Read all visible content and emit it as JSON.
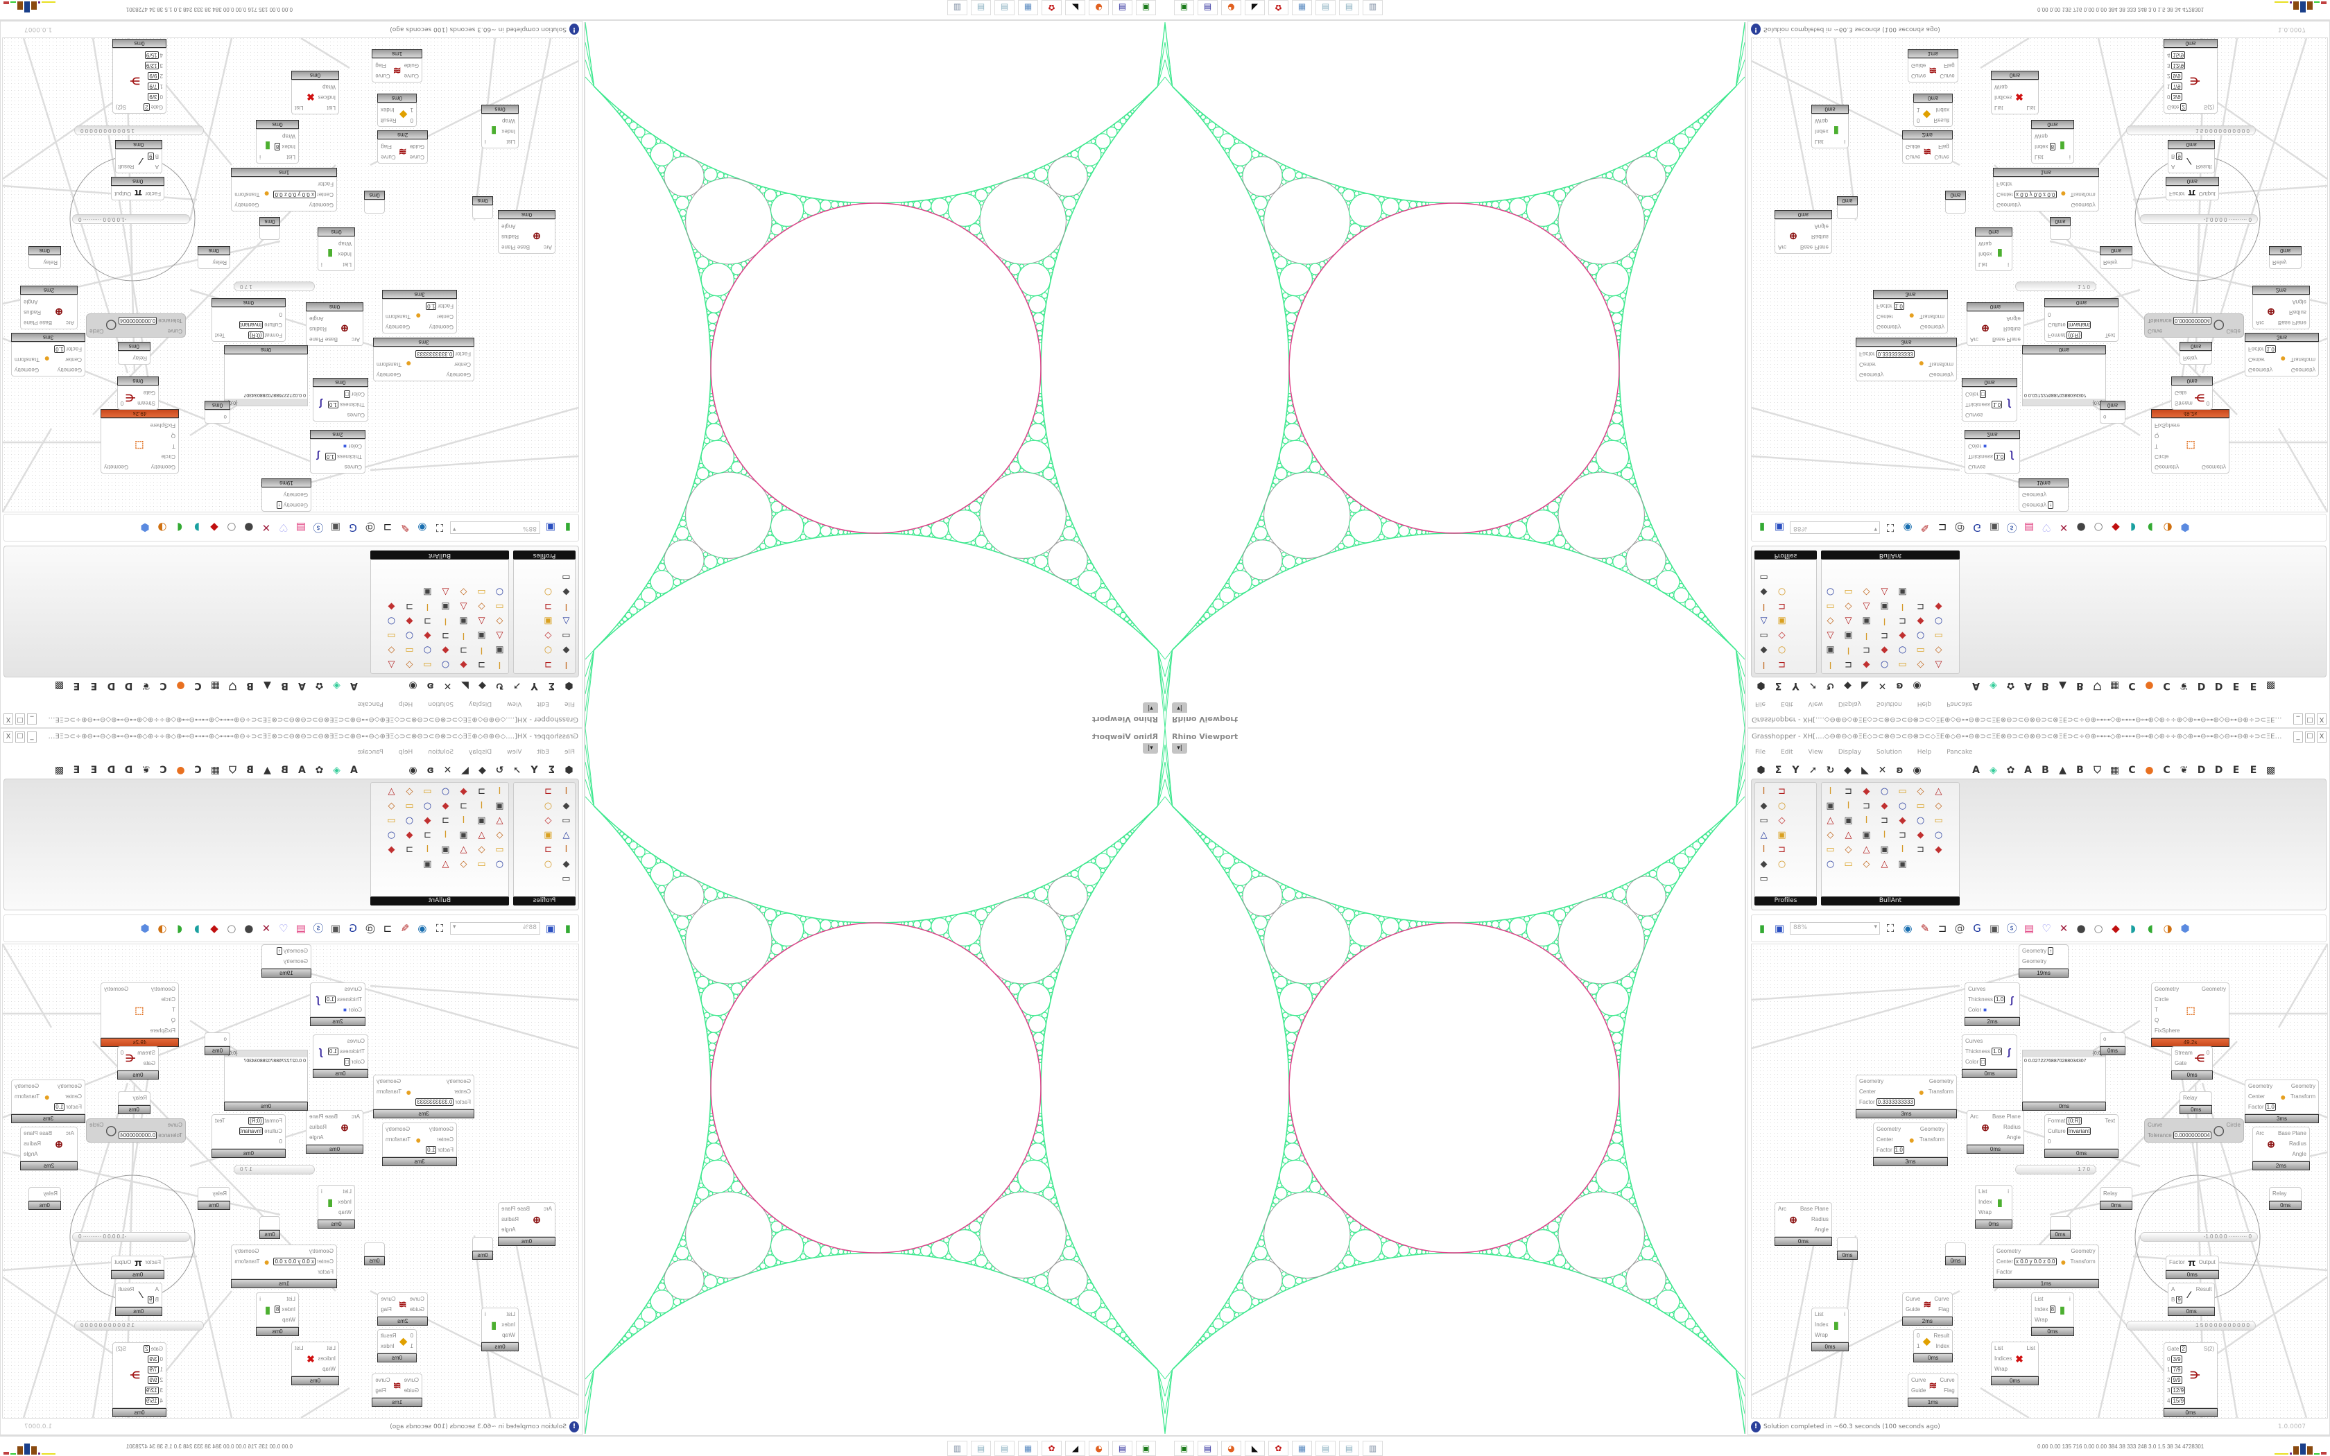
{
  "viewport": {
    "title": "Rhino Viewport",
    "dropdown_icon": "caret-down-icon"
  },
  "grasshopper": {
    "title": "Grasshopper - XH[....◇⊖⊕⊖◇⊕ΞE◇⊃⊂⊗⊖⊃⊂⊖⊗⊃⊂◇ΞE⊕◇⊖⊶⊖⊕⊃⊂ΞE⊗⊖⊃⊂⊖⊗⊖⊃⊂⊗ΞE⊃⊂÷⊖⊕⊶⊶◇⊕⊶⊶⊖⊶⊕◇⊕÷÷⊕◇⊕⊶⊖⊶⊕◇⊖⊶⊖⊕÷⊃⊂ΞE⊗⊖⊃⊂⊖⊗⊖...",
    "window_buttons": [
      "_",
      "☐",
      "X"
    ],
    "menu": [
      "File",
      "Edit",
      "View",
      "Display",
      "Solution",
      "Help",
      "Pancake"
    ],
    "category_tabs": [
      "⬢",
      "Σ",
      "Y",
      "➚",
      "↻",
      "◆",
      "◣",
      "✕",
      "ʚ",
      "◉",
      "",
      "A",
      "◈",
      "✿",
      "A",
      "B",
      "▲",
      "B",
      "⛉",
      "▦",
      "C",
      "●",
      "C",
      "❦",
      "D",
      "D",
      "E",
      "E",
      "▩"
    ],
    "ribbon": {
      "panels": [
        {
          "label": "Profiles",
          "icons": [
            "I-profile-icon",
            "C-profile-icon",
            "Z-profile-icon",
            "I-profile-icon",
            "circle-profile-icon",
            "I-profile-icon",
            "rect-profile-icon",
            "I-profile-icon",
            "rect-profile-icon",
            "L-profile-icon",
            "I-profile-icon",
            "circle-profile-icon",
            "points-icon"
          ]
        },
        {
          "label": "BullAnt",
          "icons": [
            "box-icon",
            "flower-icon",
            "graph-icon",
            "triangle-icon",
            "split-icon",
            "frame-icon",
            "surface-icon",
            "circle-icon",
            "feather-icon",
            "bars-icon",
            "quad-icon",
            "vtruss-icon",
            "lock-icon",
            "mesh-icon",
            "circle-icon",
            "cube-icon",
            "polyline-icon",
            "quad-icon",
            "vtruss-icon",
            "lock-icon",
            "surface-icon",
            "sphere-icon",
            "curve-icon",
            "dots-icon",
            "polyline-icon",
            "quad-icon",
            "lock-icon",
            "cube-icon",
            "cone-icon",
            "curve-icon",
            "split-icon",
            "polyline-icon",
            "quad-icon",
            "lock-icon",
            "hex-icon",
            "frame-icon",
            "quad-icon",
            "split-icon",
            "frame-icon",
            "rainbow-icon"
          ]
        }
      ]
    },
    "toolbar": {
      "zoom": "88%",
      "icons": [
        "open-file-icon",
        "save-icon",
        "zoom-extents-icon",
        "preview-eye-icon",
        "sketch-icon",
        "plugin-icon",
        "at-icon",
        "gha-icon",
        "window-icon",
        "search-icon",
        "package-icon",
        "bulb-icon",
        "dna-icon",
        "shaded-sphere-icon",
        "wire-sphere-icon",
        "red-gem-icon",
        "teal-icon",
        "green-icon",
        "half-sphere-icon",
        "blue-sphere-icon"
      ]
    },
    "canvas": {
      "components": [
        {
          "inputs": [
            {
              "label": "Curves"
            },
            {
              "label": "Thickness",
              "value": "1.0"
            },
            {
              "label": "Color",
              "value": "■"
            }
          ],
          "outputs": [],
          "icon": "brush-stroke-icon",
          "time": "2ms"
        },
        {
          "inputs": [
            {
              "label": "Curves"
            },
            {
              "label": "Thickness",
              "value": "1.0"
            },
            {
              "label": "Color",
              "value": "□"
            }
          ],
          "outputs": [],
          "icon": "brush-stroke-icon",
          "time": "0ms"
        },
        {
          "inputs": [
            {
              "label": "Geometry"
            },
            {
              "label": "Center"
            },
            {
              "label": "Factor",
              "value": "0.3333333333"
            }
          ],
          "outputs": [
            {
              "label": "Geometry"
            },
            {
              "label": "Transform"
            }
          ],
          "icon": "scale-icon",
          "time": "3ms"
        },
        {
          "inputs": [
            {
              "label": "Geometry"
            },
            {
              "label": "Center"
            },
            {
              "label": "Factor",
              "value": "1.0"
            }
          ],
          "outputs": [
            {
              "label": "Geometry"
            },
            {
              "label": "Transform"
            }
          ],
          "icon": "scale-icon",
          "time": "3ms"
        },
        {
          "inputs": [
            {
              "label": "Arc"
            }
          ],
          "outputs": [
            {
              "label": "Base Plane"
            },
            {
              "label": "Radius"
            },
            {
              "label": "Angle"
            }
          ],
          "icon": "arc-target-icon",
          "time": "0ms"
        },
        {
          "kind": "panel",
          "header": "{0;0}",
          "text": "0  0.02722768870288034307",
          "time": "0ms"
        },
        {
          "inputs": [
            {
              "label": "Geometry"
            },
            {
              "label": "Circle"
            },
            {
              "label": "T"
            },
            {
              "label": "Q"
            },
            {
              "label": "FixSphere"
            }
          ],
          "outputs": [
            {
              "label": "Geometry"
            }
          ],
          "icon": "kangaroo-icon",
          "time": "49.2s",
          "state": "error"
        },
        {
          "inputs": [
            {
              "label": "o"
            }
          ],
          "outputs": [],
          "time": "0ms"
        },
        {
          "inputs": [
            {
              "label": "Stream"
            },
            {
              "label": "Gate"
            }
          ],
          "outputs": [
            {
              "label": "0"
            }
          ],
          "icon": "stream-gate-icon",
          "time": "0ms"
        },
        {
          "inputs": [
            {
              "label": "Relay"
            }
          ],
          "outputs": [],
          "time": "0ms"
        },
        {
          "inputs": [
            {
              "label": "Format",
              "value": "{0;R}"
            },
            {
              "label": "Culture",
              "value": "Invariant"
            },
            {
              "label": "0"
            }
          ],
          "outputs": [
            {
              "label": "Text"
            }
          ],
          "icon": "",
          "time": "0ms"
        },
        {
          "inputs": [
            {
              "label": "Curve"
            },
            {
              "label": "Tolerance",
              "value": "0.0000000004"
            }
          ],
          "outputs": [
            {
              "label": "Circle"
            }
          ],
          "icon": "ring-icon",
          "state": "disabled"
        },
        {
          "inputs": [
            {
              "label": "Geometry"
            },
            {
              "label": "Center"
            },
            {
              "label": "Factor",
              "value": "1.0"
            }
          ],
          "outputs": [
            {
              "label": "Geometry"
            },
            {
              "label": "Transform"
            }
          ],
          "icon": "scale-icon",
          "time": "3ms"
        },
        {
          "inputs": [
            {
              "label": "Arc"
            }
          ],
          "outputs": [
            {
              "label": "Base Plane"
            },
            {
              "label": "Radius"
            },
            {
              "label": "Angle"
            }
          ],
          "icon": "arc-target-icon",
          "time": "2ms"
        },
        {
          "inputs": [
            {
              "label": "Arc"
            }
          ],
          "outputs": [
            {
              "label": "Base Plane"
            },
            {
              "label": "Radius"
            },
            {
              "label": "Angle"
            }
          ],
          "icon": "arc-target-icon",
          "time": "0ms"
        },
        {
          "inputs": [
            {
              "label": ""
            }
          ],
          "outputs": [],
          "time": "0ms"
        },
        {
          "inputs": [
            {
              "label": "List"
            },
            {
              "label": "Index"
            },
            {
              "label": "Wrap"
            }
          ],
          "outputs": [
            {
              "label": "i"
            }
          ],
          "icon": "list-item-icon",
          "time": "0ms"
        },
        {
          "inputs": [
            {
              "label": ""
            }
          ],
          "outputs": [],
          "time": "0ms"
        },
        {
          "inputs": [
            {
              "label": "Geometry"
            },
            {
              "label": "Center",
              "value": "x 0.0 y 0.0 z 0.0"
            },
            {
              "label": "Factor"
            }
          ],
          "outputs": [
            {
              "label": "Geometry"
            },
            {
              "label": "Transform"
            }
          ],
          "icon": "scale-icon",
          "time": "1ms"
        },
        {
          "inputs": [
            {
              "label": "Curve"
            },
            {
              "label": "Guide"
            }
          ],
          "outputs": [
            {
              "label": "Curve"
            },
            {
              "label": "Flag"
            }
          ],
          "icon": "flip-curve-icon",
          "time": "2ms"
        },
        {
          "inputs": [
            {
              "label": "List"
            },
            {
              "label": "Index"
            },
            {
              "label": "Wrap"
            }
          ],
          "outputs": [
            {
              "label": "i"
            }
          ],
          "icon": "list-item-icon",
          "time": "0ms"
        },
        {
          "inputs": [
            {
              "label": "0"
            },
            {
              "label": "1"
            }
          ],
          "outputs": [
            {
              "label": "Result"
            },
            {
              "label": "Index"
            }
          ],
          "icon": "pick-icon",
          "time": "0ms"
        },
        {
          "inputs": [
            {
              "label": "Curve"
            },
            {
              "label": "Guide"
            }
          ],
          "outputs": [
            {
              "label": "Curve"
            },
            {
              "label": "Flag"
            }
          ],
          "icon": "flip-curve-icon",
          "time": "1ms"
        },
        {
          "inputs": [
            {
              "label": "List"
            },
            {
              "label": "Indices"
            },
            {
              "label": "Wrap"
            }
          ],
          "outputs": [
            {
              "label": "List"
            }
          ],
          "icon": "cull-index-icon",
          "time": "0ms"
        },
        {
          "inputs": [
            {
              "label": "List"
            },
            {
              "label": "Index",
              "value": "8"
            },
            {
              "label": "Wrap"
            }
          ],
          "outputs": [
            {
              "label": "i"
            }
          ],
          "icon": "list-item-icon",
          "time": "0ms"
        },
        {
          "inputs": [
            {
              "label": "Relay"
            }
          ],
          "outputs": [],
          "time": "0ms"
        },
        {
          "inputs": [
            {
              "label": "Relay"
            }
          ],
          "outputs": [],
          "time": "0ms"
        },
        {
          "inputs": [
            {
              "label": ""
            }
          ],
          "outputs": [],
          "time": "0ms"
        },
        {
          "inputs": [
            {
              "label": "Factor"
            }
          ],
          "outputs": [
            {
              "label": "Output"
            }
          ],
          "icon": "pi-icon",
          "time": "0ms"
        },
        {
          "inputs": [
            {
              "label": "A"
            },
            {
              "label": "B",
              "value": "9"
            }
          ],
          "outputs": [
            {
              "label": "Result"
            }
          ],
          "icon": "division-icon",
          "time": "0ms"
        },
        {
          "inputs": [
            {
              "label": "Gate",
              "value": "2"
            },
            {
              "label": "0",
              "value": "3/9"
            },
            {
              "label": "1",
              "value": "7/9"
            },
            {
              "label": "2",
              "value": "9/9"
            },
            {
              "label": "3",
              "value": "12/9"
            },
            {
              "label": "4",
              "value": "15/9"
            }
          ],
          "outputs": [
            {
              "label": "S(2)"
            }
          ],
          "icon": "stream-filter-icon",
          "time": "0ms"
        },
        {
          "inputs": [
            {
              "label": "Geometry",
              "value": "↑"
            },
            {
              "label": "Geometry"
            }
          ],
          "outputs": [],
          "time": "19ms"
        }
      ],
      "sliders": [
        {
          "text": "1 7 0"
        },
        {
          "text": "-1.0  0.0  0  ·········· 0"
        },
        {
          "text": "1 5 0 0 0 0 0 0 0 0 0 0"
        }
      ]
    },
    "status": {
      "icon": "info-icon",
      "message": "Solution completed in ~60.3 seconds (100 seconds ago)",
      "version": "1.0.0007"
    }
  },
  "taskbar": {
    "apps": [
      "terminal-icon",
      "save-64-icon",
      "firefox-icon",
      "rhino-icon",
      "settings-gear-icon",
      "calculator-icon",
      "notepad-icon",
      "notepad-icon",
      "document-icon"
    ],
    "stats": "0.00 0.00  135  716  0.00 0.00  384  38  333  248  3.0  1.5  38  34  4728301"
  },
  "colors": {
    "gasket": "#3fe88f",
    "central_circle": "#e0408a",
    "error": "#d9561f",
    "accent": "#2a3f9a"
  }
}
